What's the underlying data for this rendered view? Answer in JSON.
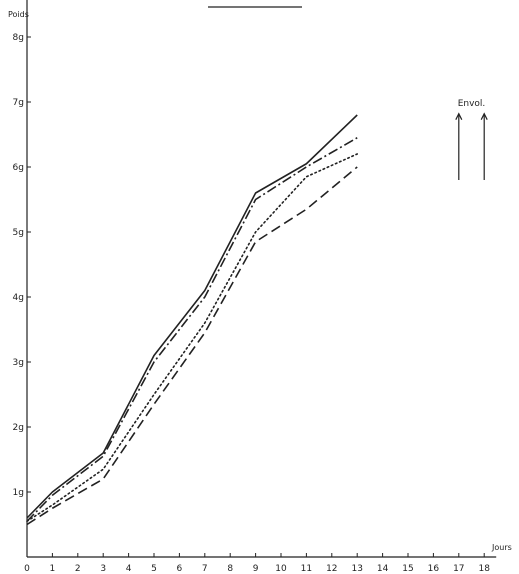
{
  "chart_data": {
    "type": "line",
    "title": "",
    "xlabel": "Jours",
    "ylabel": "Poids",
    "xlim": [
      0,
      18
    ],
    "ylim": [
      0,
      8.5
    ],
    "x_ticks": [
      "0",
      "1",
      "2",
      "3",
      "4",
      "5",
      "6",
      "7",
      "8",
      "9",
      "10",
      "11",
      "12",
      "13",
      "14",
      "15",
      "16",
      "17",
      "18"
    ],
    "y_ticks": [
      {
        "value": 1,
        "label": "1g"
      },
      {
        "value": 2,
        "label": "2g"
      },
      {
        "value": 3,
        "label": "3g"
      },
      {
        "value": 4,
        "label": "4g"
      },
      {
        "value": 5,
        "label": "5g"
      },
      {
        "value": 6,
        "label": "6g"
      },
      {
        "value": 7,
        "label": "7g"
      },
      {
        "value": 8,
        "label": "8g"
      }
    ],
    "grid": false,
    "series": [
      {
        "style": "solid",
        "x": [
          0,
          1,
          3,
          5,
          7,
          9,
          11,
          13
        ],
        "y": [
          0.6,
          1.0,
          1.6,
          3.1,
          4.1,
          5.6,
          6.05,
          6.8
        ]
      },
      {
        "style": "dashdot",
        "x": [
          0,
          1,
          3,
          5,
          7,
          9,
          11,
          13
        ],
        "y": [
          0.55,
          0.95,
          1.55,
          3.0,
          4.0,
          5.5,
          6.0,
          6.45
        ]
      },
      {
        "style": "dotted",
        "x": [
          0,
          1,
          3,
          5,
          7,
          9,
          11,
          13
        ],
        "y": [
          0.55,
          0.8,
          1.35,
          2.5,
          3.6,
          5.0,
          5.85,
          6.2
        ]
      },
      {
        "style": "dashed",
        "x": [
          0,
          1,
          3,
          5,
          7,
          9,
          11,
          13
        ],
        "y": [
          0.5,
          0.75,
          1.2,
          2.35,
          3.45,
          4.85,
          5.35,
          6.0
        ]
      }
    ],
    "annotations": [
      {
        "text": "Envol.",
        "x": [
          17,
          18
        ]
      }
    ]
  }
}
